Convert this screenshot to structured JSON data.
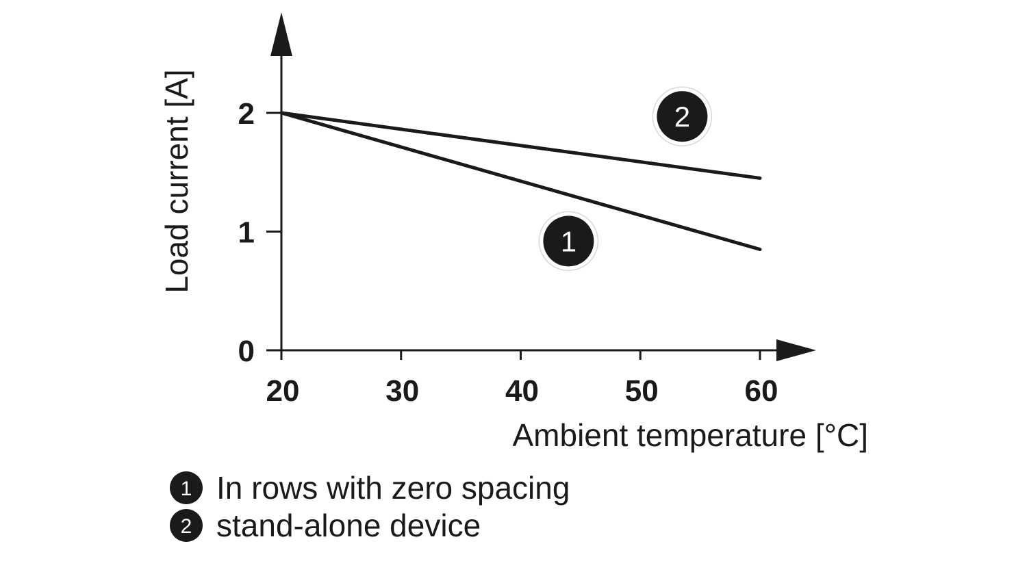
{
  "chart_data": {
    "type": "line",
    "xlabel": "Ambient temperature [°C]",
    "ylabel": "Load current [A]",
    "xlim": [
      20,
      60
    ],
    "ylim": [
      0,
      2
    ],
    "x_ticks": [
      20,
      30,
      40,
      50,
      60
    ],
    "y_ticks": [
      0,
      1,
      2
    ],
    "grid": false,
    "line_color": "#1a1a1a",
    "series": [
      {
        "marker": "1",
        "x": [
          20,
          60
        ],
        "values": [
          2.0,
          0.85
        ]
      },
      {
        "marker": "2",
        "x": [
          20,
          60
        ],
        "values": [
          2.0,
          1.45
        ]
      }
    ],
    "markers": [
      {
        "label": "1",
        "x": 44,
        "y": 0.92
      },
      {
        "label": "2",
        "x": 53.5,
        "y": 1.97
      }
    ],
    "legend": [
      {
        "marker": "1",
        "text": "In rows with zero spacing"
      },
      {
        "marker": "2",
        "text": "stand-alone device"
      }
    ]
  }
}
